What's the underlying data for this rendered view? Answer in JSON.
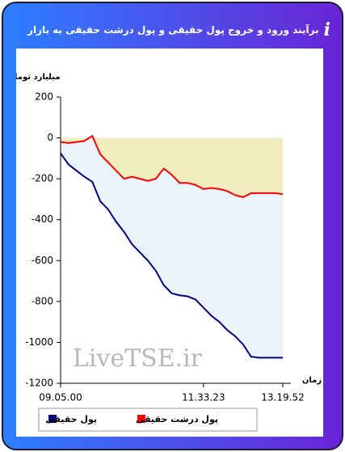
{
  "chart_data": {
    "type": "line",
    "title": "برآیند ورود و خروج پول حقیقی و پول درشت حقیقی به بازار",
    "y_label": "میلیارد تومان",
    "x_label": "زمان",
    "watermark": "LiveTSE.ir",
    "categories": [
      "09.05.00",
      null,
      null,
      null,
      null,
      null,
      null,
      null,
      null,
      null,
      null,
      null,
      null,
      null,
      null,
      null,
      null,
      null,
      "11.33.23",
      null,
      null,
      null,
      null,
      null,
      null,
      null,
      null,
      null,
      "13.19.52"
    ],
    "series": [
      {
        "name": "پول حقیقی",
        "color": "#000080",
        "fill": "#eaf4fa",
        "values": [
          -75,
          -130,
          -160,
          -190,
          -215,
          -310,
          -350,
          -410,
          -460,
          -520,
          -560,
          -600,
          -650,
          -720,
          -760,
          -770,
          -775,
          -790,
          -830,
          -870,
          -900,
          -940,
          -970,
          -1010,
          -1070,
          -1075,
          -1075,
          -1075,
          -1075
        ]
      },
      {
        "name": "پول درشت حقیقی",
        "color": "#ff0000",
        "fill": "#f1edbf",
        "values": [
          -20,
          -25,
          -20,
          -15,
          10,
          -80,
          -120,
          -160,
          -200,
          -190,
          -200,
          -210,
          -200,
          -150,
          -180,
          -220,
          -220,
          -230,
          -250,
          -245,
          -250,
          -260,
          -280,
          -290,
          -270,
          -270,
          -270,
          -270,
          -275
        ]
      }
    ],
    "ylim": [
      -1200,
      200
    ],
    "yticks": [
      200,
      0,
      -200,
      -400,
      -600,
      -800,
      -1000,
      -1200
    ]
  }
}
